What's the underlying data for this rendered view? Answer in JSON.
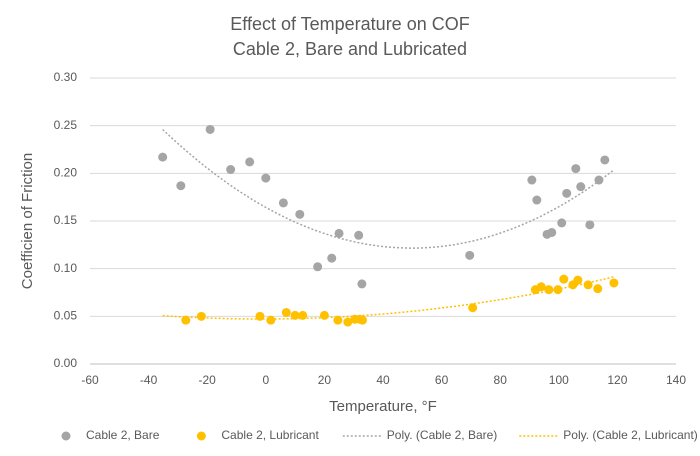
{
  "chart_data": {
    "type": "scatter",
    "title": [
      "Effect of Temperature on COF",
      "Cable 2, Bare and Lubricated"
    ],
    "x_label": "Temperature, °F",
    "y_label": "Coefficien of Friction",
    "xlim": [
      -60,
      140
    ],
    "xticks": [
      -60,
      -40,
      -20,
      0,
      20,
      40,
      60,
      80,
      100,
      120,
      140
    ],
    "ylim": [
      0,
      0.3
    ],
    "yticks": [
      {
        "value": 0,
        "label": "0.00"
      },
      {
        "value": 0.05,
        "label": "0.05"
      },
      {
        "value": 0.1,
        "label": "0.10"
      },
      {
        "value": 0.15,
        "label": "0.15"
      },
      {
        "value": 0.2,
        "label": "0.20"
      },
      {
        "value": 0.25,
        "label": "0.25"
      },
      {
        "value": 0.3,
        "label": "0.30"
      }
    ],
    "grid": true,
    "legend": "bottom",
    "series": [
      {
        "name": "Cable 2, Bare",
        "color": "#a5a5a5",
        "x": [
          -35.2,
          -29,
          -19,
          -12,
          -5.5,
          0,
          6,
          11.6,
          17.7,
          22.5,
          25,
          31.7,
          32.8,
          69.6,
          90.8,
          92.5,
          96,
          97.6,
          101,
          102.7,
          105.8,
          107.5,
          110.6,
          113.7,
          115.7
        ],
        "values": [
          0.217,
          0.187,
          0.246,
          0.204,
          0.212,
          0.195,
          0.169,
          0.157,
          0.102,
          0.111,
          0.137,
          0.135,
          0.084,
          0.114,
          0.193,
          0.172,
          0.136,
          0.138,
          0.148,
          0.179,
          0.205,
          0.186,
          0.146,
          0.193,
          0.214
        ]
      },
      {
        "name": "Cable 2, Lubricant",
        "color": "#ffc000",
        "x": [
          -27.3,
          -22,
          -2,
          1.7,
          7,
          10,
          12.6,
          20,
          24.6,
          28,
          30.4,
          32,
          33,
          70.6,
          92,
          94,
          96.6,
          99.7,
          101.7,
          104.8,
          106.5,
          110,
          113.3,
          118.8
        ],
        "values": [
          0.046,
          0.05,
          0.05,
          0.046,
          0.054,
          0.051,
          0.051,
          0.051,
          0.046,
          0.044,
          0.047,
          0.047,
          0.046,
          0.059,
          0.078,
          0.081,
          0.078,
          0.078,
          0.089,
          0.083,
          0.088,
          0.083,
          0.079,
          0.085
        ]
      }
    ],
    "trendlines": [
      {
        "name": "Poly. (Cable 2, Bare)",
        "series": 0,
        "color": "#a5a5a5"
      },
      {
        "name": "Poly. (Cable 2, Lubricant)",
        "series": 1,
        "color": "#ffc000"
      }
    ]
  }
}
